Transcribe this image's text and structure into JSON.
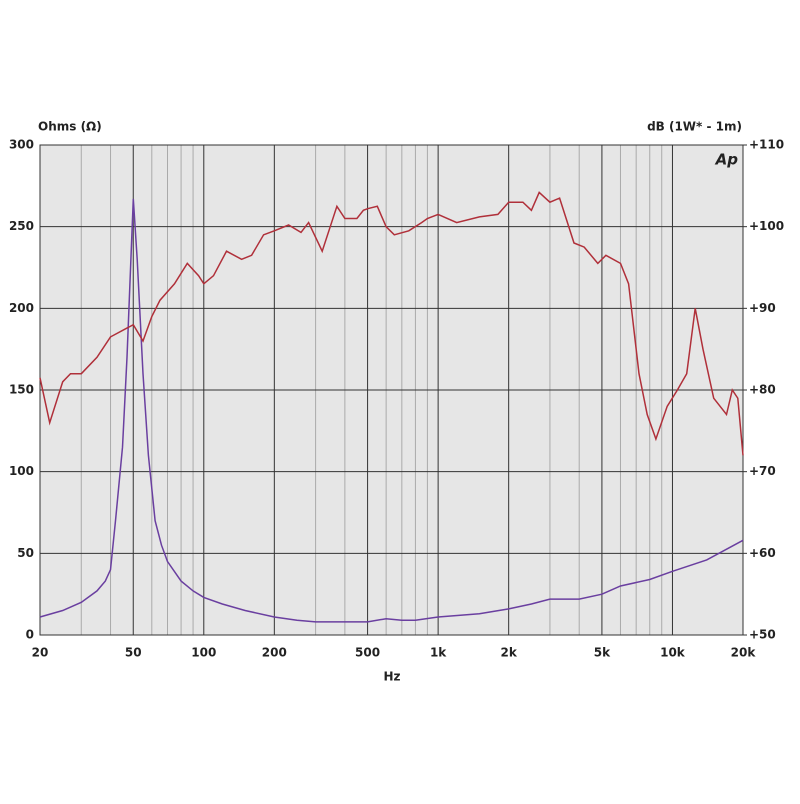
{
  "chart_data": {
    "type": "line",
    "x_scale": "log",
    "ylabel": "Ohms (Ω)",
    "y2label": "dB (1W* - 1m)",
    "xlabel": "Hz",
    "logo": "Ap",
    "xlim": [
      20,
      20000
    ],
    "xticks": [
      20,
      50,
      100,
      200,
      500,
      {
        "value": 1000,
        "label": "1k"
      },
      {
        "value": 2000,
        "label": "2k"
      },
      {
        "value": 5000,
        "label": "5k"
      },
      {
        "value": 10000,
        "label": "10k"
      },
      {
        "value": 20000,
        "label": "20k"
      }
    ],
    "x_minor_ticks": [
      30,
      40,
      60,
      70,
      80,
      90,
      300,
      400,
      600,
      700,
      800,
      900,
      3000,
      4000,
      6000,
      7000,
      8000,
      9000
    ],
    "ylim": [
      0,
      300
    ],
    "yticks": [
      0,
      50,
      100,
      150,
      200,
      250,
      300
    ],
    "y2lim": [
      50,
      110
    ],
    "y2ticks": [
      {
        "value": 50,
        "label": "+50"
      },
      {
        "value": 60,
        "label": "+60"
      },
      {
        "value": 70,
        "label": "+70"
      },
      {
        "value": 80,
        "label": "+80"
      },
      {
        "value": 90,
        "label": "+90"
      },
      {
        "value": 100,
        "label": "+100"
      },
      {
        "value": 110,
        "label": "+110"
      }
    ],
    "grid": true,
    "series": [
      {
        "color": "#6a3fa0",
        "x": [
          20,
          25,
          30,
          35,
          38,
          40,
          42,
          45,
          47,
          50,
          52,
          55,
          58,
          62,
          66,
          70,
          80,
          90,
          100,
          120,
          150,
          200,
          250,
          300,
          400,
          500,
          600,
          700,
          800,
          1000,
          1500,
          2000,
          2500,
          3000,
          4000,
          5000,
          6000,
          8000,
          10000,
          14000,
          20000
        ],
        "values": [
          11,
          15,
          20,
          27,
          33,
          40,
          70,
          115,
          170,
          267,
          230,
          160,
          110,
          70,
          55,
          45,
          33,
          27,
          23,
          19,
          15,
          11,
          9,
          8,
          8,
          8,
          10,
          9,
          9,
          11,
          13,
          16,
          19,
          22,
          22,
          25,
          30,
          34,
          39,
          46,
          58
        ]
      },
      {
        "color": "#b0303a",
        "axis": "y2",
        "x": [
          20,
          22,
          25,
          27,
          30,
          35,
          40,
          50,
          55,
          60,
          65,
          75,
          85,
          95,
          100,
          110,
          125,
          145,
          160,
          180,
          200,
          230,
          260,
          280,
          320,
          370,
          400,
          450,
          480,
          500,
          550,
          600,
          650,
          750,
          850,
          900,
          1000,
          1200,
          1500,
          1800,
          2000,
          2300,
          2500,
          2700,
          3000,
          3300,
          3800,
          4200,
          4800,
          5200,
          6000,
          6500,
          7200,
          7800,
          8500,
          9500,
          10500,
          11500,
          12500,
          13500,
          15000,
          17000,
          18000,
          19000,
          20000
        ],
        "values": [
          81.5,
          76,
          81,
          82,
          82,
          84,
          86.5,
          88,
          86,
          89,
          91,
          93,
          95.5,
          94,
          93,
          94,
          97,
          96,
          96.5,
          99,
          99.5,
          100.2,
          99.3,
          100.5,
          97,
          102.5,
          101,
          101,
          102,
          102.2,
          102.5,
          100,
          99,
          99.5,
          100.5,
          101,
          101.5,
          100.5,
          101.2,
          101.5,
          103,
          103,
          102,
          104.2,
          103,
          103.5,
          98,
          97.5,
          95.5,
          96.5,
          95.5,
          93,
          82,
          77,
          74,
          78,
          80,
          82,
          90,
          85,
          79,
          77,
          80,
          79,
          72
        ]
      }
    ]
  }
}
